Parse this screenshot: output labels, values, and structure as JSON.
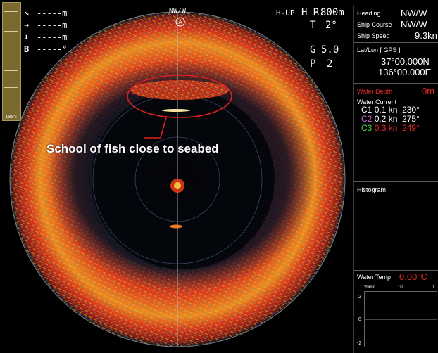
{
  "markers": {
    "rows": [
      {
        "icon": "diagonal-arrow-icon",
        "glyph": "⬊",
        "dashes": "-----",
        "unit": "m"
      },
      {
        "icon": "right-arrow-icon",
        "glyph": "➜",
        "dashes": "-----",
        "unit": "m"
      },
      {
        "icon": "down-arrow-icon",
        "glyph": "⬇",
        "dashes": "-----",
        "unit": "m"
      },
      {
        "icon": "bearing-label",
        "glyph": "B",
        "dashes": "-----",
        "unit": "°"
      }
    ]
  },
  "gain_bar": {
    "label": "100%"
  },
  "heading_marker": "NW/W",
  "hud": {
    "mode": "H-UP",
    "hr": "H R",
    "range": "800m",
    "tilt_label": "T",
    "tilt_value": "2°",
    "gain_label": "G",
    "gain_value": "5.0",
    "p_label": "P",
    "p_value": "2"
  },
  "annotation": "School of fish close to seabed",
  "panel": {
    "heading_label": "Heading",
    "heading_value": "NW/W",
    "ship_course_label": "Ship Course",
    "ship_course_value": "NW/W",
    "ship_speed_label": "Ship Speed",
    "ship_speed_value": "9.3kn",
    "latlon_label": "Lat/Lon [ GPS ]",
    "lat": "37°00.000N",
    "lon": "136°00.000E",
    "depth_label": "Water Depth",
    "depth_value": "0m",
    "current_label": "Water Current",
    "currents": [
      {
        "name": "C1",
        "speed": "0.1 kn",
        "dir": "230°",
        "color": "#ffffff"
      },
      {
        "name": "C2",
        "speed": "0.2 kn",
        "dir": "275°",
        "color": "#ffffff"
      },
      {
        "name": "C3",
        "speed": "0.3 kn",
        "dir": "249°",
        "color": "#e52a2a"
      }
    ],
    "histogram_label": "Histogram",
    "temp_label": "Water Temp",
    "temp_value": "0.00°C",
    "temp_axis": {
      "left": "20min",
      "mid": "10",
      "right": "0"
    },
    "temp_y": {
      "top": "2",
      "mid": "0",
      "bottom": "-2"
    }
  },
  "colors": {
    "echo_strong": "#e8321c",
    "echo_mid": "#f0a21e",
    "echo_weak": "#23b8a0",
    "background": "#000000",
    "annotation_circle": "#e02020"
  }
}
